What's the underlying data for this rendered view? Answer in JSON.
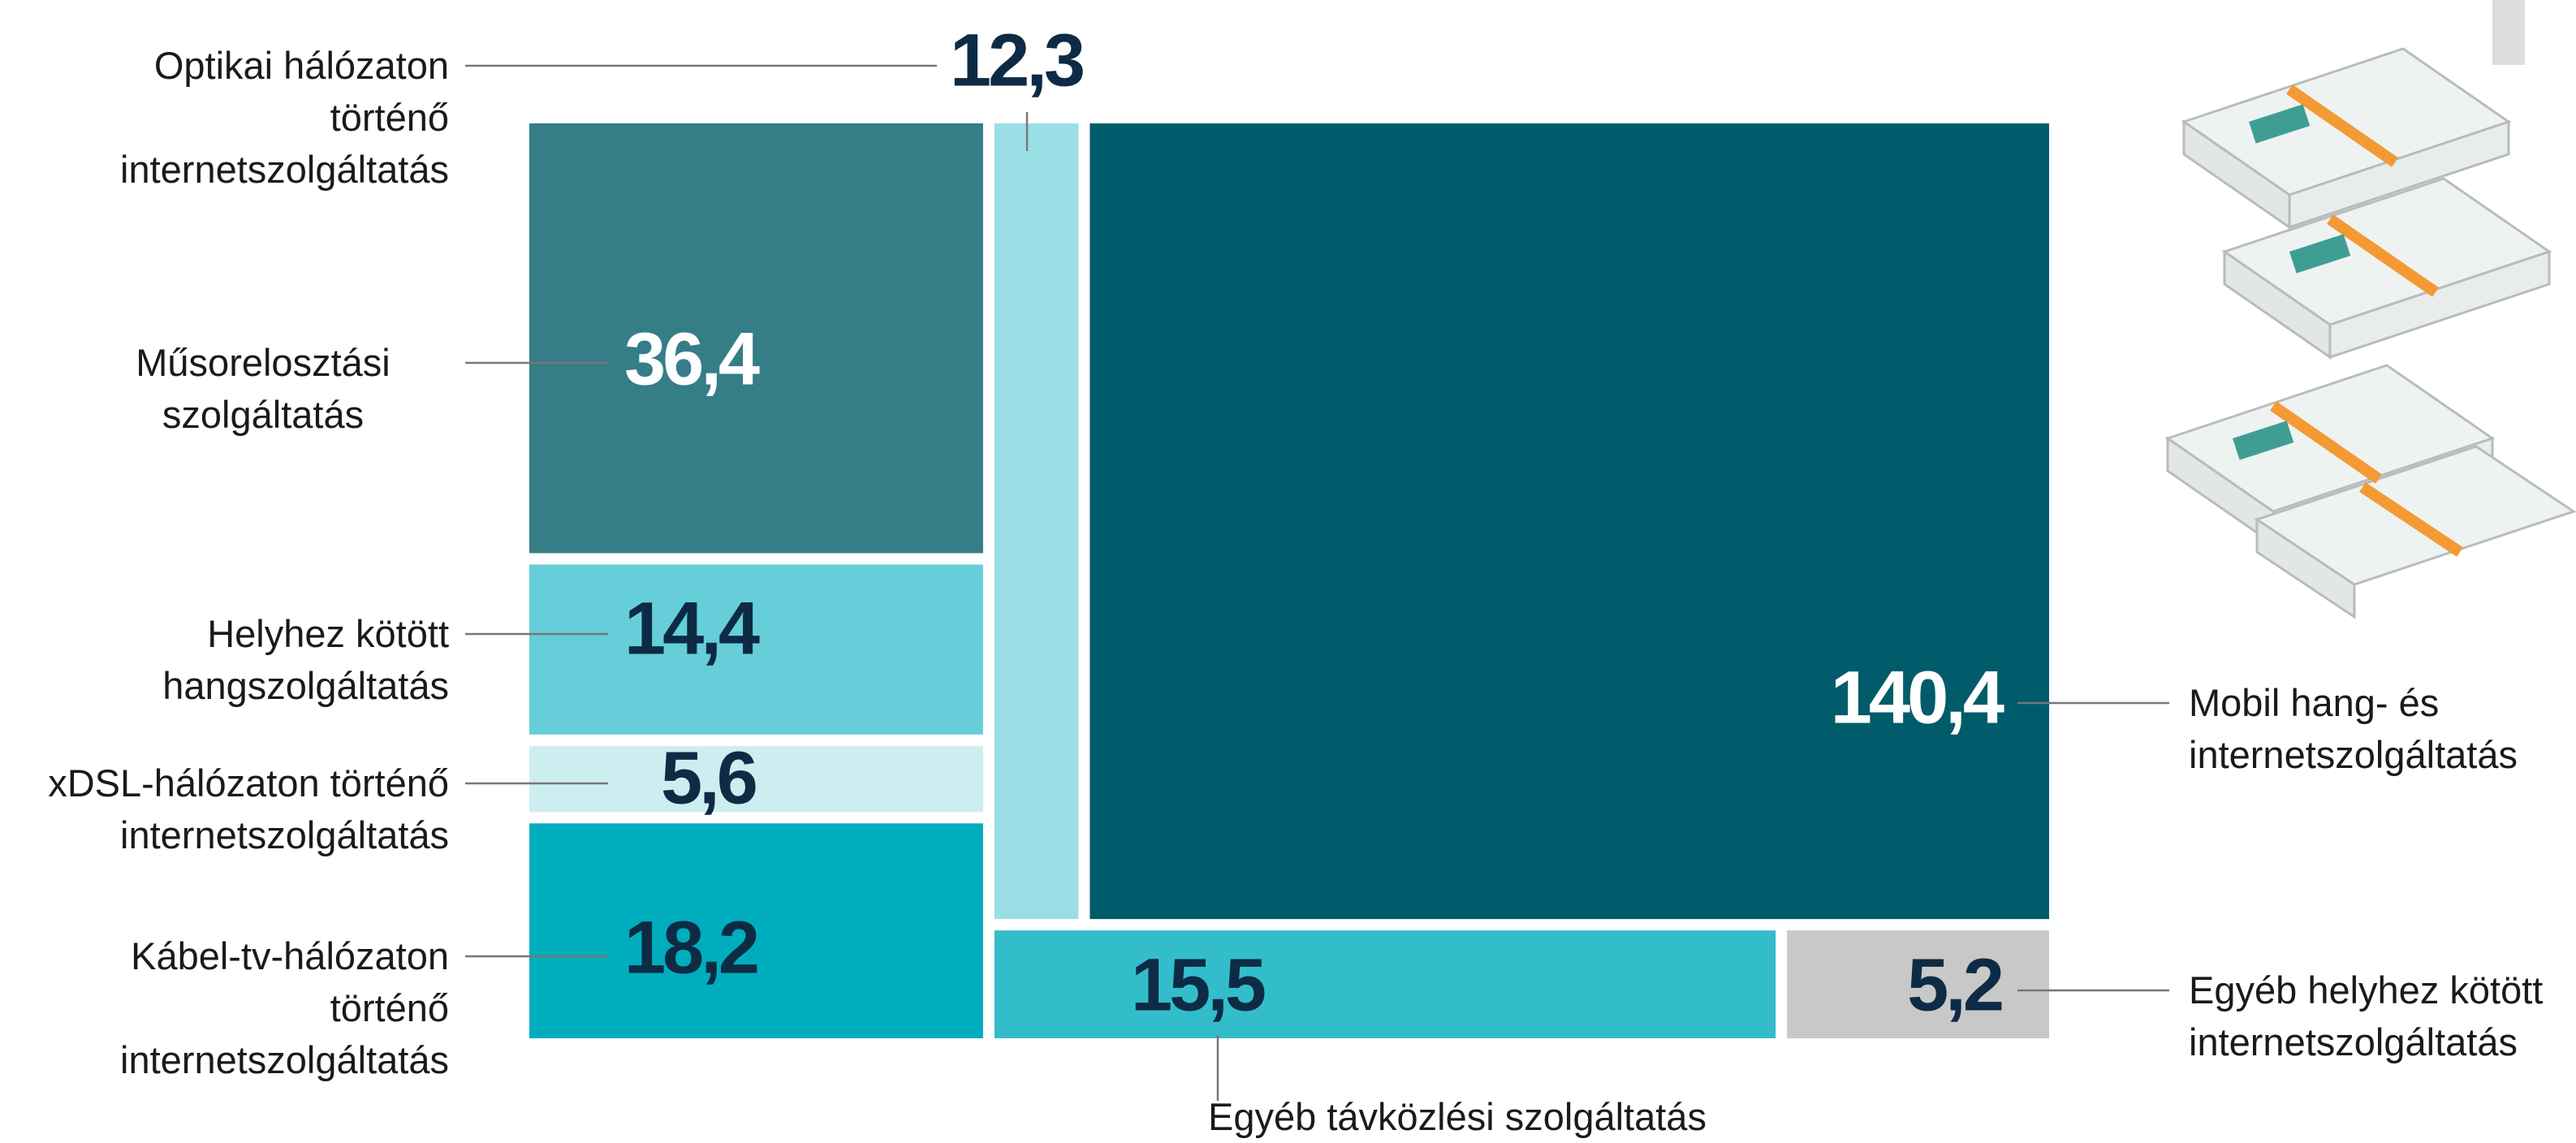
{
  "chart_data": {
    "type": "treemap",
    "categories": [
      "Műsorelosztási szolgáltatás",
      "Helyhez kötött hangszolgáltatás",
      "xDSL-hálózaton történő internetszolgáltatás",
      "Kábel-tv-hálózaton történő internetszolgáltatás",
      "Optikai hálózaton történő internetszolgáltatás",
      "Mobil hang- és internetszolgáltatás",
      "Egyéb távközlési szolgáltatás",
      "Egyéb helyhez kötött internetszolgáltatás"
    ],
    "values": [
      36.4,
      14.4,
      5.6,
      18.2,
      12.3,
      140.4,
      15.5,
      5.2
    ],
    "value_labels": [
      "36,4",
      "14,4",
      "5,6",
      "18,2",
      "12,3",
      "140,4",
      "15,5",
      "5,2"
    ],
    "colors": [
      "#357d87",
      "#66ced8",
      "#cdeef0",
      "#00adbd",
      "#9adfe5",
      "#005c6b",
      "#33bdca",
      "#c8c8c8"
    ]
  }
}
